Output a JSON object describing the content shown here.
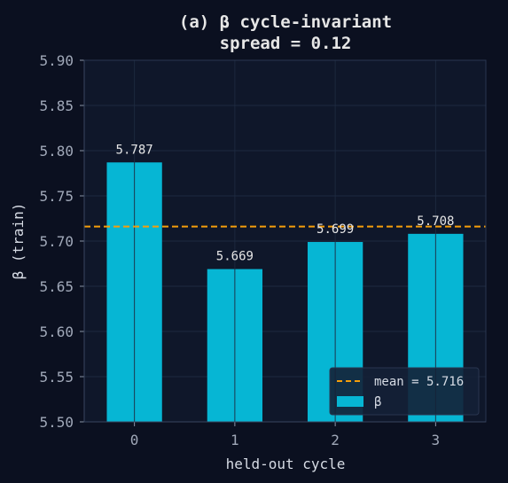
{
  "chart_data": {
    "type": "bar",
    "title": "(a) β cycle-invariant",
    "subtitle": "spread = 0.12",
    "xlabel": "held-out cycle",
    "ylabel": "β (train)",
    "categories": [
      "0",
      "1",
      "2",
      "3"
    ],
    "series": [
      {
        "name": "β",
        "values": [
          5.787,
          5.669,
          5.699,
          5.708
        ],
        "color": "#06b6d4"
      }
    ],
    "data_labels": [
      "5.787",
      "5.669",
      "5.699",
      "5.708"
    ],
    "ylim": [
      5.5,
      5.9
    ],
    "yticks": [
      5.5,
      5.55,
      5.6,
      5.65,
      5.7,
      5.75,
      5.8,
      5.85,
      5.9
    ],
    "ytick_labels": [
      "5.50",
      "5.55",
      "5.60",
      "5.65",
      "5.70",
      "5.75",
      "5.80",
      "5.85",
      "5.90"
    ],
    "reference_line": {
      "label": "mean = 5.716",
      "value": 5.716,
      "color": "#f59e0b",
      "style": "dashed"
    },
    "grid": true,
    "legend_position": "lower-right",
    "colors": {
      "background": "#0b1020",
      "plot_background": "#0f172a",
      "grid": "#1e2a40"
    }
  }
}
